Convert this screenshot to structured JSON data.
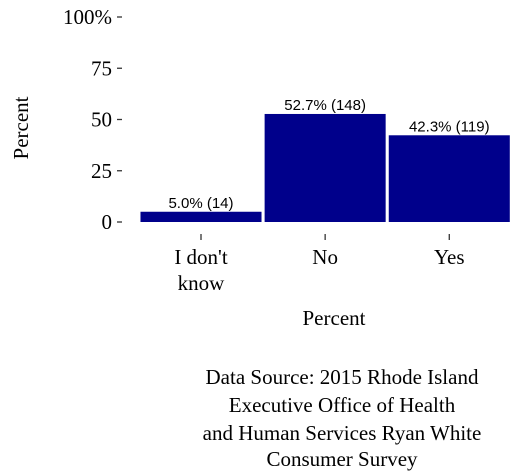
{
  "chart_data": {
    "type": "bar",
    "categories": [
      [
        "I don't",
        "know"
      ],
      [
        "No"
      ],
      [
        "Yes"
      ]
    ],
    "values": [
      5.0,
      52.7,
      42.3
    ],
    "data_labels": [
      "5.0% (14)",
      "52.7% (148)",
      "42.3% (119)"
    ],
    "y_ticks": [
      "0",
      "25",
      "50",
      "75",
      "100%"
    ],
    "y_tick_values": [
      0,
      25,
      50,
      75,
      100
    ],
    "ylim": [
      0,
      100
    ],
    "xlabel": "Percent",
    "ylabel": "Percent",
    "grid": false,
    "bar_color": "#00008B"
  },
  "caption_lines": [
    "Data Source: 2015 Rhode Island",
    "Executive Office of Health",
    "and Human Services Ryan White",
    "Consumer Survey"
  ]
}
